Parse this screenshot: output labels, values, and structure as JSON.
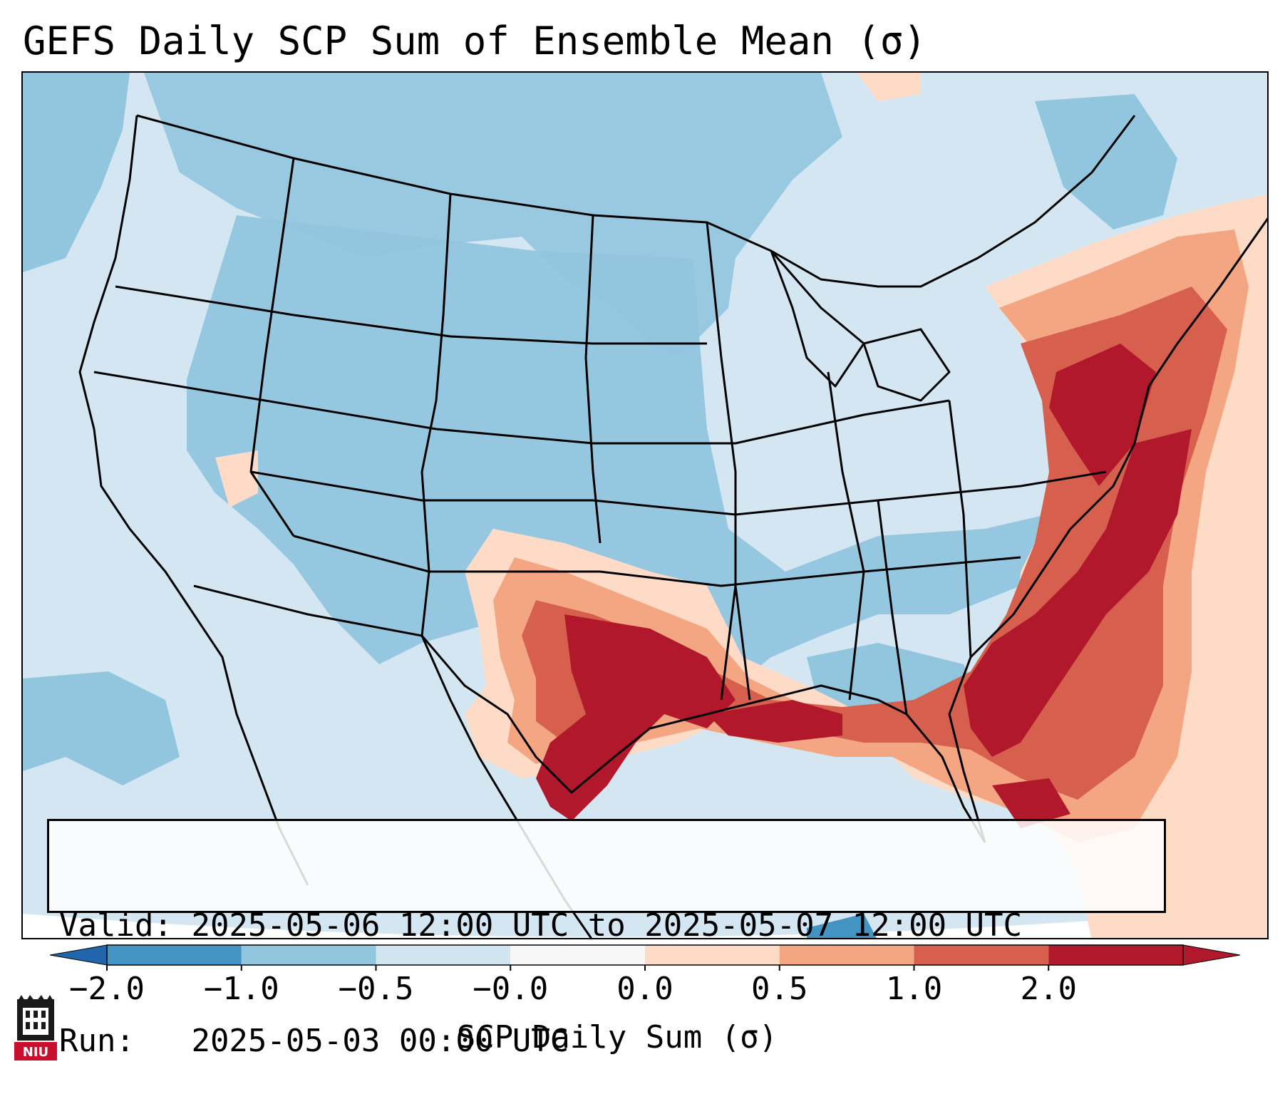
{
  "title": "GEFS Daily SCP Sum of Ensemble Mean (σ)",
  "info": {
    "valid_label": "Valid:",
    "valid_value": "2025-05-06 12:00 UTC to 2025-05-07 12:00 UTC",
    "run_label": "Run:",
    "run_value": "2025-05-03 00:00 UTC"
  },
  "colorbar": {
    "label": "SCP Daily Sum (σ)",
    "ticks": [
      "−2.0",
      "−1.0",
      "−0.5",
      "−0.0",
      "0.0",
      "0.5",
      "1.0",
      "2.0"
    ],
    "colors": [
      "#4393c3",
      "#92c5de",
      "#d1e5f0",
      "#f7f7f7",
      "#fddbc7",
      "#f4a582",
      "#d6604d",
      "#b2182b"
    ],
    "extend_low_color": "#2166ac",
    "extend_high_color": "#b2182b"
  },
  "logo": {
    "text": "NIU",
    "color": "#c8102e"
  },
  "map": {
    "background_color": "#d3e6f1",
    "ocean_outside_color": "#ffffff"
  }
}
